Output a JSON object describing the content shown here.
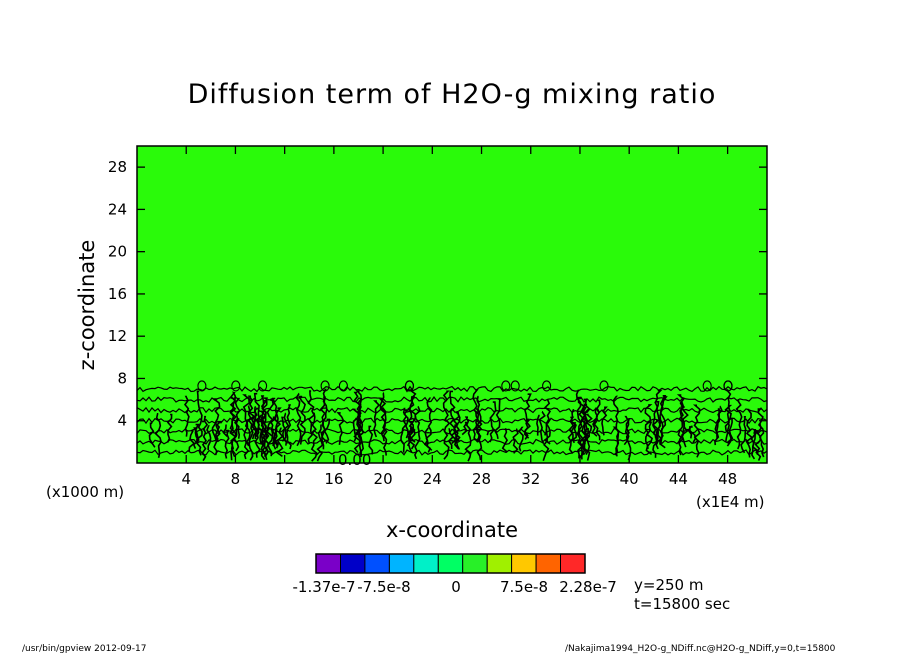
{
  "chart_data": {
    "type": "heatmap",
    "title": "Diffusion term of H2O-g mixing ratio",
    "xlabel": "x-coordinate",
    "ylabel": "z-coordinate",
    "x_unit_left": "(x1000 m)",
    "x_unit_right": "(x1E4 m)",
    "xlim": [
      0,
      51.2
    ],
    "ylim": [
      0,
      30
    ],
    "xticks": [
      {
        "v": 4,
        "label": "4"
      },
      {
        "v": 8,
        "label": "8"
      },
      {
        "v": 12,
        "label": "12"
      },
      {
        "v": 16,
        "label": "16"
      },
      {
        "v": 20,
        "label": "20"
      },
      {
        "v": 24,
        "label": "24"
      },
      {
        "v": 28,
        "label": "28"
      },
      {
        "v": 32,
        "label": "32"
      },
      {
        "v": 36,
        "label": "36"
      },
      {
        "v": 40,
        "label": "40"
      },
      {
        "v": 44,
        "label": "44"
      },
      {
        "v": 48,
        "label": "48"
      }
    ],
    "yticks": [
      {
        "v": 4,
        "label": "4"
      },
      {
        "v": 8,
        "label": "8"
      },
      {
        "v": 12,
        "label": "12"
      },
      {
        "v": 16,
        "label": "16"
      },
      {
        "v": 20,
        "label": "20"
      },
      {
        "v": 24,
        "label": "24"
      },
      {
        "v": 28,
        "label": "28"
      }
    ],
    "field_background_color": "#2afa0a",
    "contour_band_top": 8,
    "contour_levels_z": [
      1,
      2,
      3,
      4,
      5,
      6,
      7
    ],
    "contour_annotation": "0.00",
    "colorbar": {
      "colors": [
        "#7a00c8",
        "#0000c8",
        "#0050ff",
        "#00b4ff",
        "#00f0c8",
        "#00ff64",
        "#28f028",
        "#a0f000",
        "#ffc800",
        "#ff6400",
        "#ff2828"
      ],
      "labels": [
        "-1.37e-7",
        "-7.5e-8",
        "0",
        "7.5e-8",
        "2.28e-7"
      ]
    },
    "info": [
      "y=250 m",
      "t=15800 sec"
    ]
  },
  "footer": {
    "left": "/usr/bin/gpview   2012-09-17",
    "right": "/Nakajima1994_H2O-g_NDiff.nc@H2O-g_NDiff,y=0,t=15800"
  }
}
